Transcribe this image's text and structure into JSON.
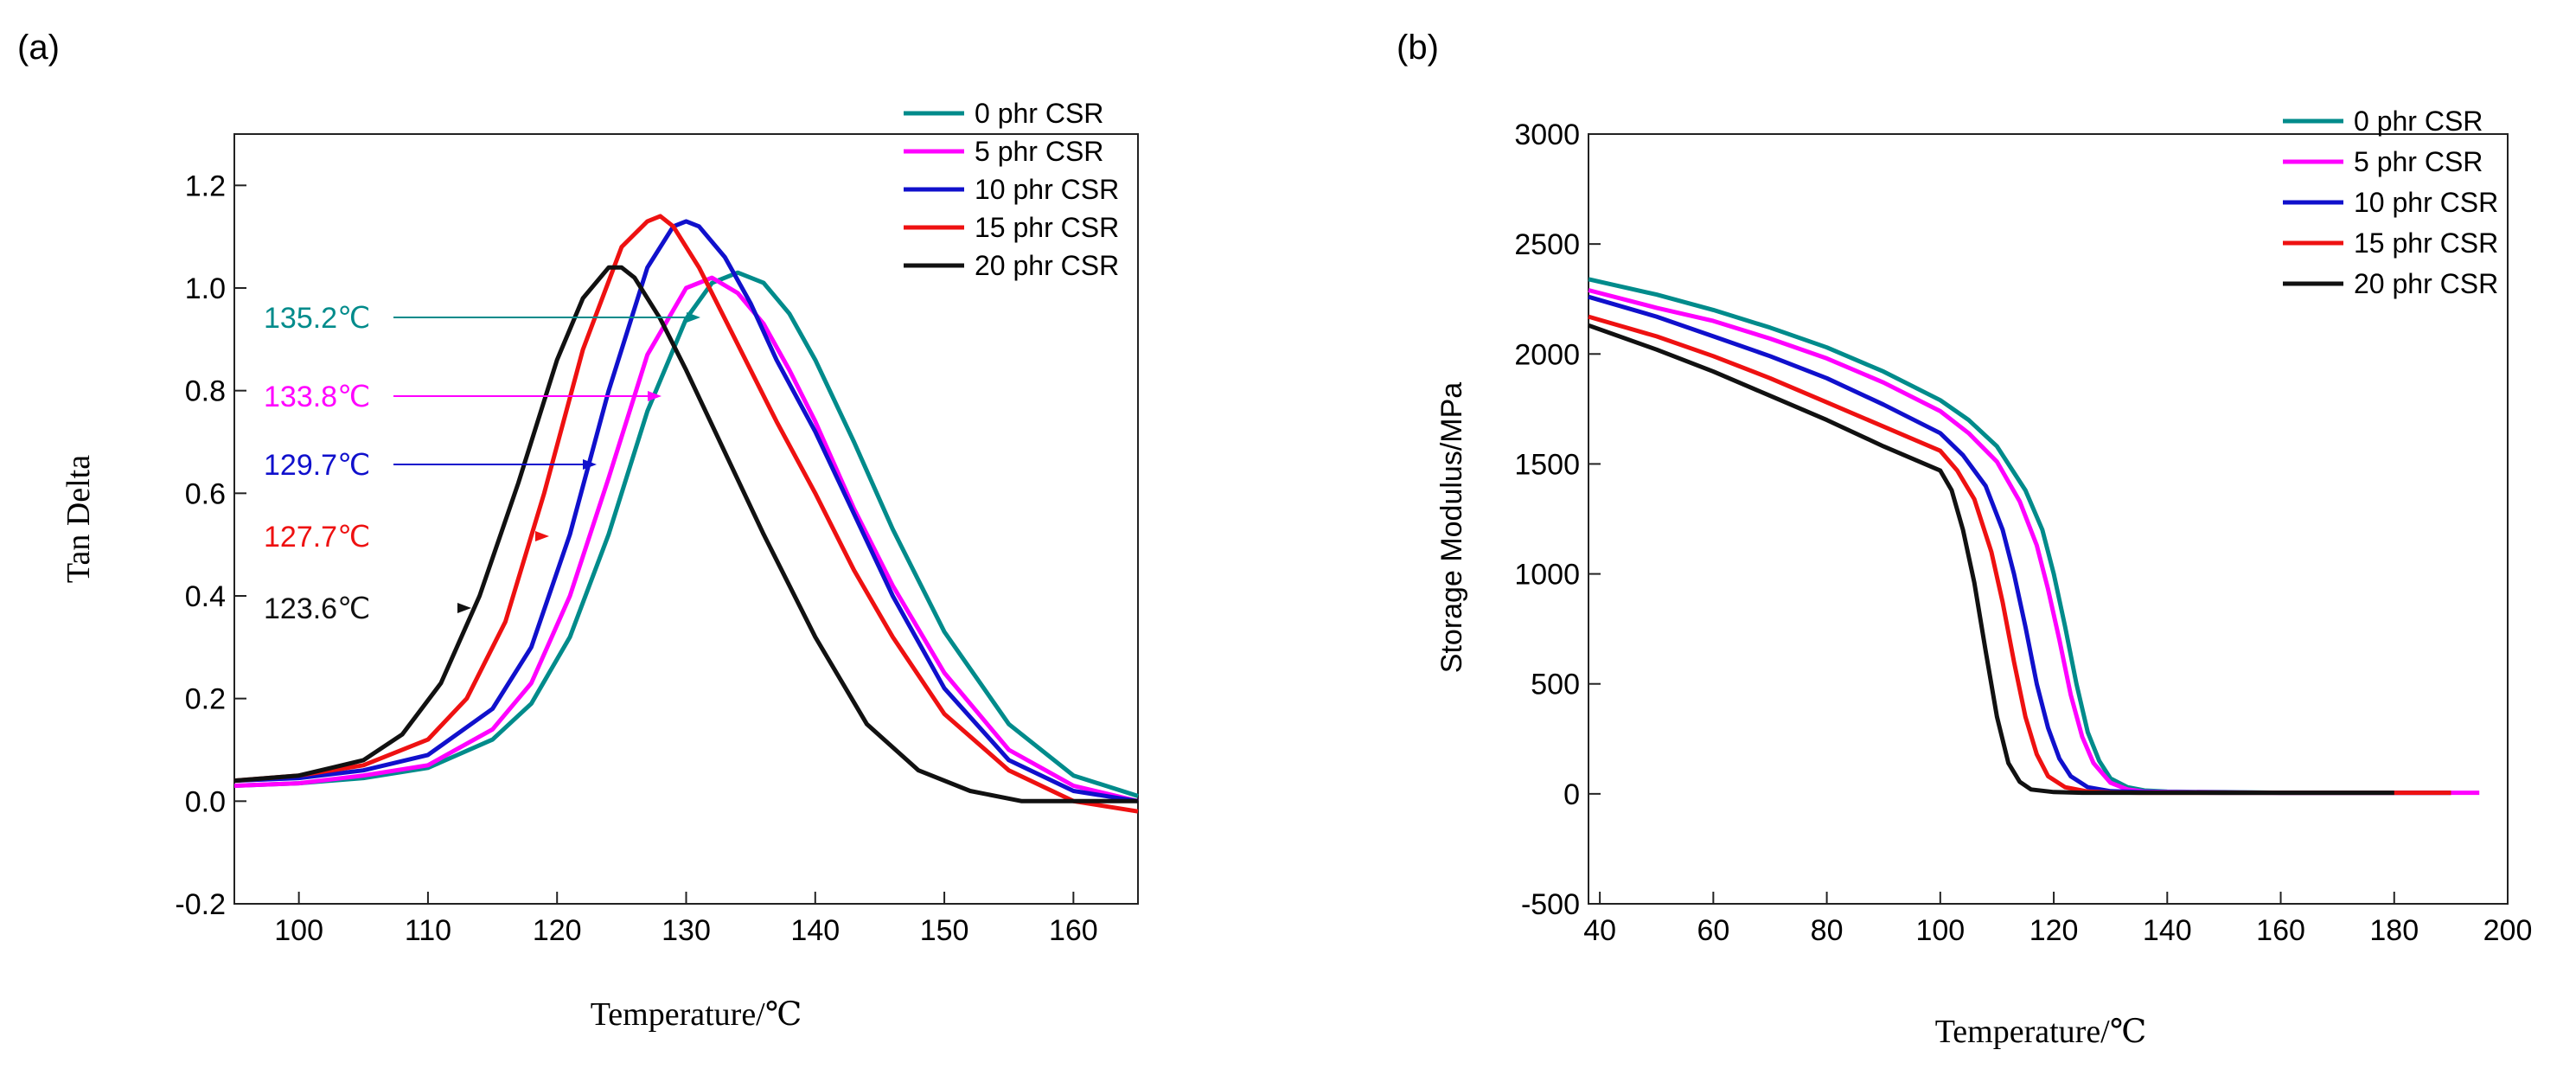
{
  "chart_data": [
    {
      "panel_label": "(a)",
      "type": "line",
      "xlabel": "Temperature/℃",
      "ylabel": "Tan Delta",
      "xlim": [
        95,
        165
      ],
      "ylim": [
        -0.2,
        1.3
      ],
      "xticks": [
        100,
        110,
        120,
        130,
        140,
        150,
        160
      ],
      "yticks": [
        -0.2,
        0.0,
        0.2,
        0.4,
        0.6,
        0.8,
        1.0,
        1.2
      ],
      "ytick_labels": [
        "-0.2",
        "0.0",
        "0.2",
        "0.4",
        "0.6",
        "0.8",
        "1.0",
        "1.2"
      ],
      "legend_position": "top-right",
      "series": [
        {
          "name": "0 phr CSR",
          "color": "#008b8b",
          "peak_label": "135.2℃",
          "x": [
            95,
            100,
            105,
            110,
            115,
            118,
            121,
            124,
            127,
            130,
            132,
            134,
            136,
            138,
            140,
            143,
            146,
            150,
            155,
            160,
            165
          ],
          "y": [
            0.03,
            0.035,
            0.045,
            0.065,
            0.12,
            0.19,
            0.32,
            0.52,
            0.76,
            0.94,
            1.01,
            1.03,
            1.01,
            0.95,
            0.86,
            0.7,
            0.53,
            0.33,
            0.15,
            0.05,
            0.01
          ]
        },
        {
          "name": "5 phr CSR",
          "color": "#ff00ff",
          "peak_label": "133.8℃",
          "x": [
            95,
            100,
            105,
            110,
            115,
            118,
            121,
            124,
            127,
            130,
            132,
            134,
            136,
            138,
            140,
            143,
            146,
            150,
            155,
            160,
            165
          ],
          "y": [
            0.03,
            0.035,
            0.05,
            0.07,
            0.14,
            0.23,
            0.4,
            0.63,
            0.87,
            1.0,
            1.02,
            0.99,
            0.93,
            0.84,
            0.74,
            0.57,
            0.42,
            0.25,
            0.1,
            0.03,
            0.0
          ]
        },
        {
          "name": "10 phr CSR",
          "color": "#1010cc",
          "peak_label": "129.7℃",
          "x": [
            95,
            100,
            105,
            110,
            115,
            118,
            121,
            124,
            127,
            129,
            130,
            131,
            133,
            135,
            137,
            140,
            143,
            146,
            150,
            155,
            160,
            165
          ],
          "y": [
            0.04,
            0.045,
            0.06,
            0.09,
            0.18,
            0.3,
            0.52,
            0.8,
            1.04,
            1.12,
            1.13,
            1.12,
            1.06,
            0.97,
            0.86,
            0.72,
            0.56,
            0.4,
            0.22,
            0.08,
            0.02,
            0.0
          ]
        },
        {
          "name": "15 phr CSR",
          "color": "#ee1111",
          "peak_label": "127.7℃",
          "x": [
            95,
            100,
            105,
            110,
            113,
            116,
            119,
            122,
            125,
            127,
            128,
            129,
            131,
            133,
            135,
            137,
            140,
            143,
            146,
            150,
            155,
            160,
            165
          ],
          "y": [
            0.04,
            0.05,
            0.07,
            0.12,
            0.2,
            0.35,
            0.6,
            0.88,
            1.08,
            1.13,
            1.14,
            1.12,
            1.04,
            0.94,
            0.84,
            0.74,
            0.6,
            0.45,
            0.32,
            0.17,
            0.06,
            0.0,
            -0.02
          ]
        },
        {
          "name": "20 phr CSR",
          "color": "#111111",
          "peak_label": "123.6℃",
          "x": [
            95,
            100,
            105,
            108,
            111,
            114,
            117,
            120,
            122,
            124,
            125,
            126,
            128,
            130,
            133,
            136,
            140,
            144,
            148,
            152,
            156,
            160,
            165
          ],
          "y": [
            0.04,
            0.05,
            0.08,
            0.13,
            0.23,
            0.4,
            0.62,
            0.86,
            0.98,
            1.04,
            1.04,
            1.02,
            0.94,
            0.84,
            0.68,
            0.52,
            0.32,
            0.15,
            0.06,
            0.02,
            0.0,
            0.0,
            0.0
          ]
        }
      ]
    },
    {
      "panel_label": "(b)",
      "type": "line",
      "xlabel": "Temperature/℃",
      "ylabel": "Storage Modulus/MPa",
      "xlim": [
        38,
        200
      ],
      "ylim": [
        -500,
        3000
      ],
      "xticks": [
        40,
        60,
        80,
        100,
        120,
        140,
        160,
        180,
        200
      ],
      "yticks": [
        -500,
        0,
        500,
        1000,
        1500,
        2000,
        2500,
        3000
      ],
      "ytick_labels": [
        "-500",
        "0",
        "500",
        "1000",
        "1500",
        "2000",
        "2500",
        "3000"
      ],
      "legend_position": "top-right",
      "series": [
        {
          "name": "0 phr CSR",
          "color": "#008b8b",
          "x": [
            38,
            50,
            60,
            70,
            80,
            90,
            100,
            105,
            110,
            115,
            118,
            120,
            122,
            124,
            126,
            128,
            130,
            133,
            136,
            140,
            150,
            160,
            170,
            180,
            190
          ],
          "y": [
            2340,
            2270,
            2200,
            2120,
            2030,
            1920,
            1790,
            1700,
            1580,
            1380,
            1200,
            1000,
            760,
            500,
            280,
            150,
            70,
            30,
            15,
            10,
            8,
            5,
            5,
            5,
            5
          ]
        },
        {
          "name": "5 phr CSR",
          "color": "#ff00ff",
          "x": [
            38,
            50,
            60,
            70,
            80,
            90,
            100,
            105,
            110,
            114,
            117,
            119,
            121,
            123,
            125,
            127,
            130,
            133,
            136,
            140,
            150,
            160,
            170,
            180,
            195
          ],
          "y": [
            2290,
            2210,
            2150,
            2070,
            1980,
            1870,
            1740,
            1640,
            1510,
            1330,
            1130,
            930,
            700,
            450,
            260,
            140,
            50,
            20,
            10,
            8,
            6,
            5,
            5,
            5,
            5
          ]
        },
        {
          "name": "10 phr CSR",
          "color": "#1010cc",
          "x": [
            38,
            50,
            60,
            70,
            80,
            90,
            100,
            104,
            108,
            111,
            113,
            115,
            117,
            119,
            121,
            123,
            126,
            130,
            135,
            140,
            150,
            160,
            170,
            180,
            190
          ],
          "y": [
            2260,
            2170,
            2080,
            1990,
            1890,
            1770,
            1640,
            1540,
            1400,
            1200,
            1000,
            760,
            500,
            300,
            160,
            80,
            30,
            12,
            8,
            6,
            5,
            5,
            5,
            5,
            5
          ]
        },
        {
          "name": "15 phr CSR",
          "color": "#ee1111",
          "x": [
            38,
            50,
            60,
            70,
            80,
            90,
            100,
            103,
            106,
            109,
            111,
            113,
            115,
            117,
            119,
            122,
            126,
            130,
            135,
            140,
            150,
            160,
            170,
            180,
            190
          ],
          "y": [
            2170,
            2080,
            1990,
            1890,
            1780,
            1670,
            1560,
            1470,
            1340,
            1100,
            870,
            600,
            350,
            180,
            80,
            30,
            10,
            6,
            5,
            5,
            5,
            5,
            5,
            5,
            5
          ]
        },
        {
          "name": "20 phr CSR",
          "color": "#111111",
          "x": [
            38,
            50,
            60,
            70,
            80,
            90,
            100,
            102,
            104,
            106,
            108,
            110,
            112,
            114,
            116,
            120,
            125,
            130,
            140,
            150,
            160,
            170,
            180
          ],
          "y": [
            2130,
            2020,
            1920,
            1810,
            1700,
            1580,
            1470,
            1380,
            1200,
            960,
            650,
            350,
            140,
            55,
            20,
            8,
            5,
            5,
            5,
            5,
            5,
            5,
            5
          ]
        }
      ]
    }
  ]
}
